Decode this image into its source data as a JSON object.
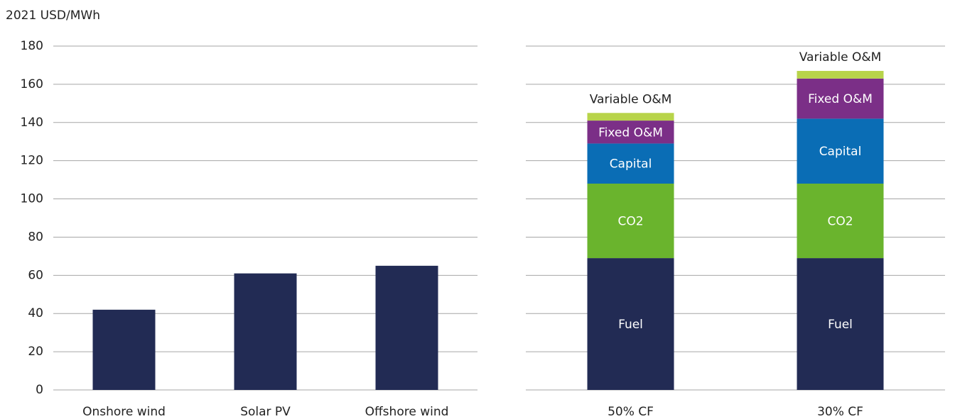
{
  "chart_data": [
    {
      "type": "bar",
      "ylabel": "2021 USD/MWh",
      "categories": [
        "Onshore wind",
        "Solar PV",
        "Offshore wind"
      ],
      "values": [
        42,
        61,
        65
      ],
      "color": "#222b54",
      "ylim": [
        0,
        180
      ],
      "yticks": [
        0,
        20,
        40,
        60,
        80,
        100,
        120,
        140,
        160,
        180
      ],
      "grid": true
    },
    {
      "type": "stacked_bar",
      "categories": [
        "50% CF",
        "30% CF"
      ],
      "series": [
        {
          "name": "Fuel",
          "color": "#222b54",
          "values": [
            69,
            69
          ]
        },
        {
          "name": "CO2",
          "color": "#6ab42d",
          "values": [
            39,
            39
          ]
        },
        {
          "name": "Capital",
          "color": "#0a6db5",
          "values": [
            21,
            34
          ]
        },
        {
          "name": "Fixed O&M",
          "color": "#7b2f87",
          "values": [
            12,
            21
          ]
        },
        {
          "name": "Variable O&M",
          "color": "#b8d44a",
          "values": [
            4,
            4
          ]
        }
      ],
      "ylim": [
        0,
        180
      ],
      "grid": true
    }
  ]
}
